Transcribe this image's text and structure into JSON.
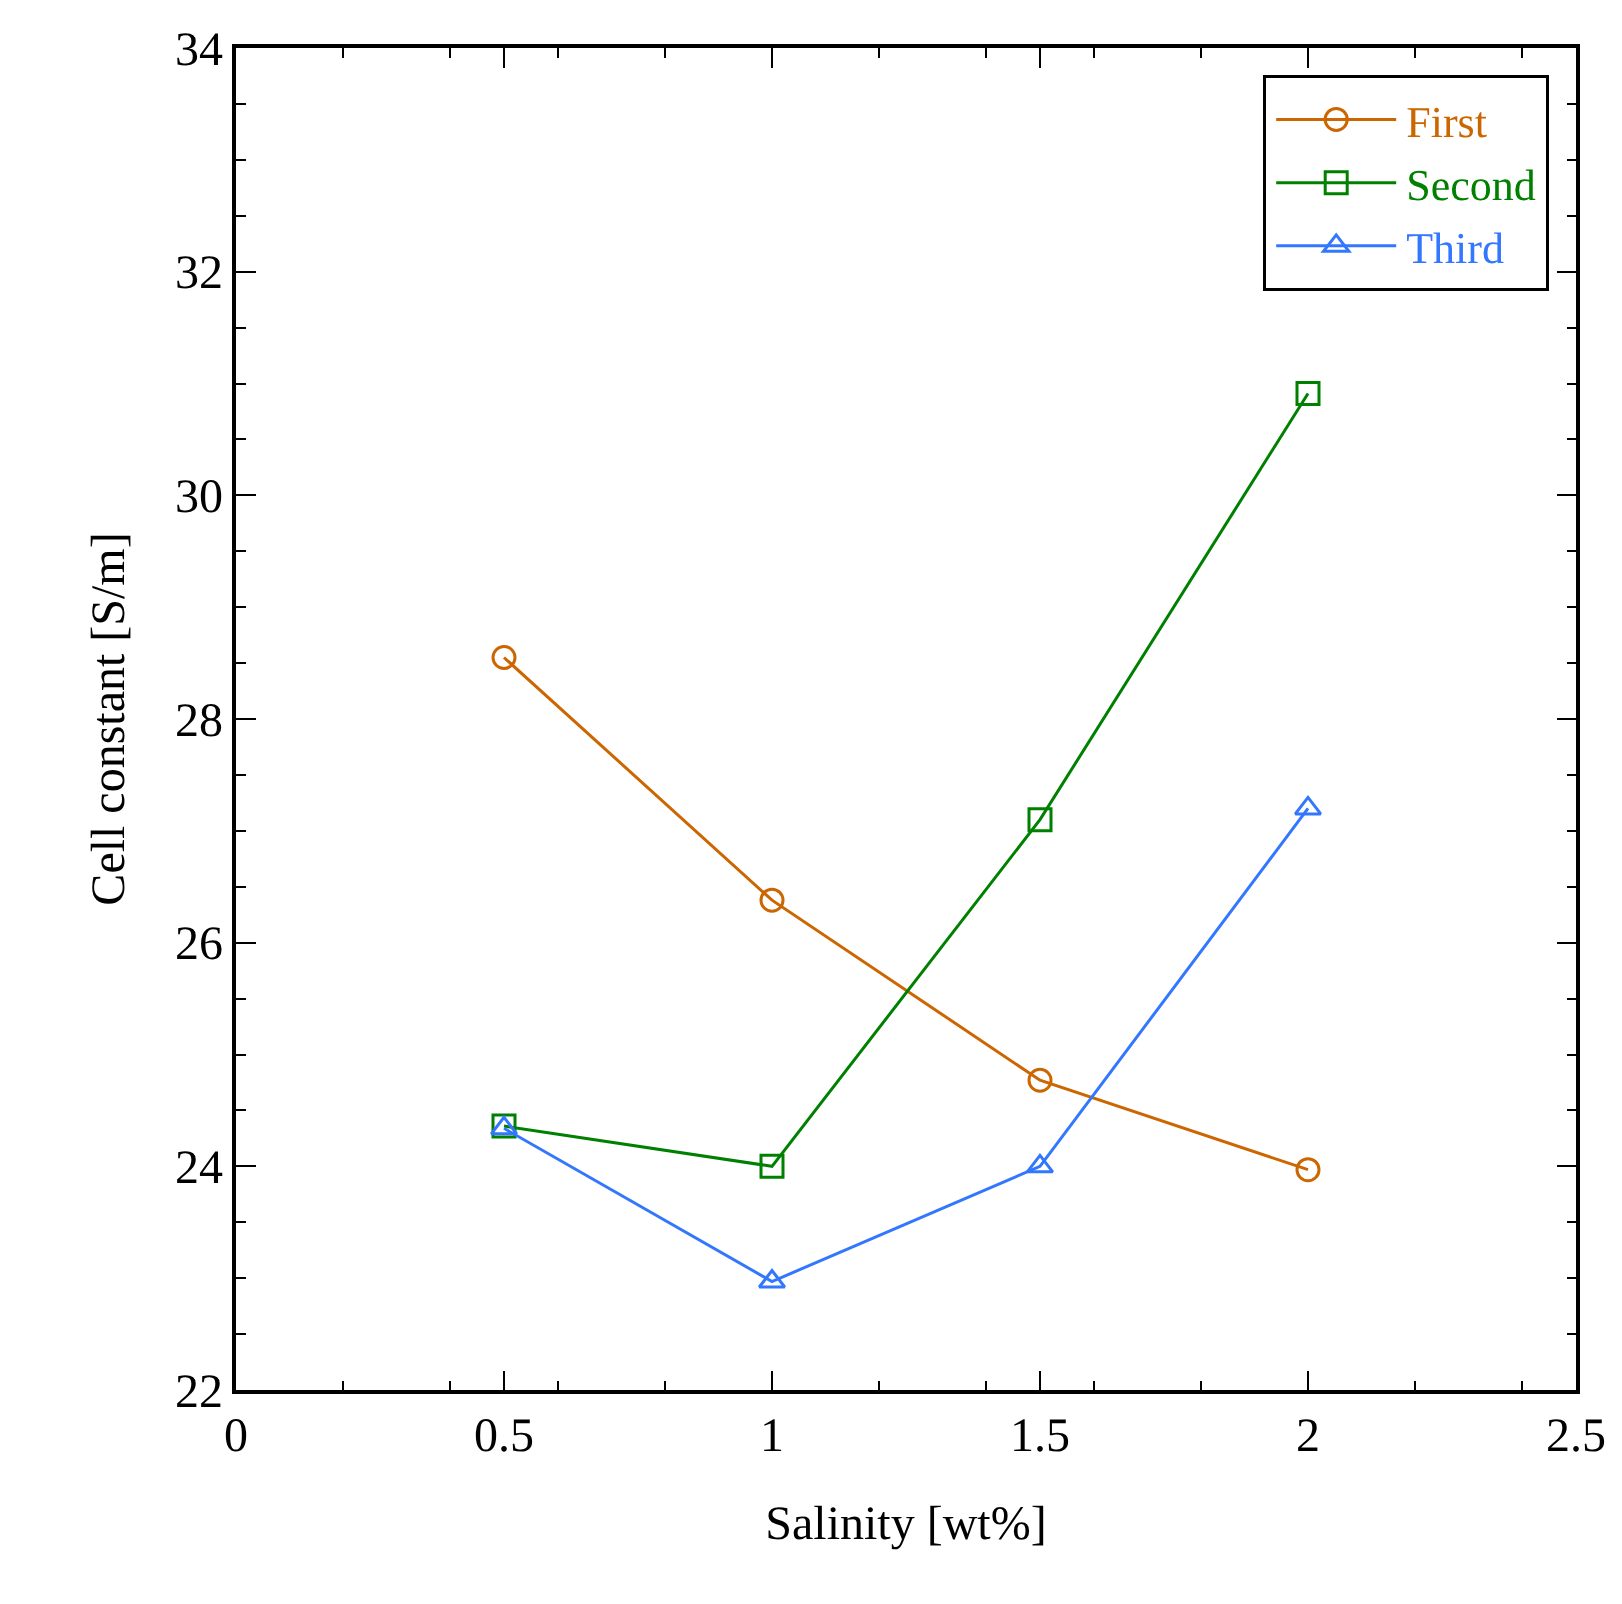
{
  "chart_data": {
    "type": "line",
    "xlabel": "Salinity [wt%]",
    "ylabel": "Cell constant [S/m]",
    "x": [
      0.5,
      1,
      1.5,
      2
    ],
    "series": [
      {
        "name": "First",
        "color": "#cc6600",
        "marker": "circle",
        "values": [
          28.55,
          26.38,
          24.77,
          23.97
        ]
      },
      {
        "name": "Second",
        "color": "#008000",
        "marker": "square",
        "values": [
          24.36,
          24.0,
          27.1,
          30.91
        ]
      },
      {
        "name": "Third",
        "color": "#3377ff",
        "marker": "triangle",
        "values": [
          24.34,
          22.97,
          24.0,
          27.2
        ]
      }
    ],
    "xlim": [
      0,
      2.5
    ],
    "xticks": [
      0,
      0.5,
      1,
      1.5,
      2,
      2.5
    ],
    "ylim": [
      22,
      34
    ],
    "yticks": [
      22,
      24,
      26,
      28,
      30,
      32,
      34
    ],
    "grid": false,
    "legend": "top right",
    "line_style": "solid"
  }
}
